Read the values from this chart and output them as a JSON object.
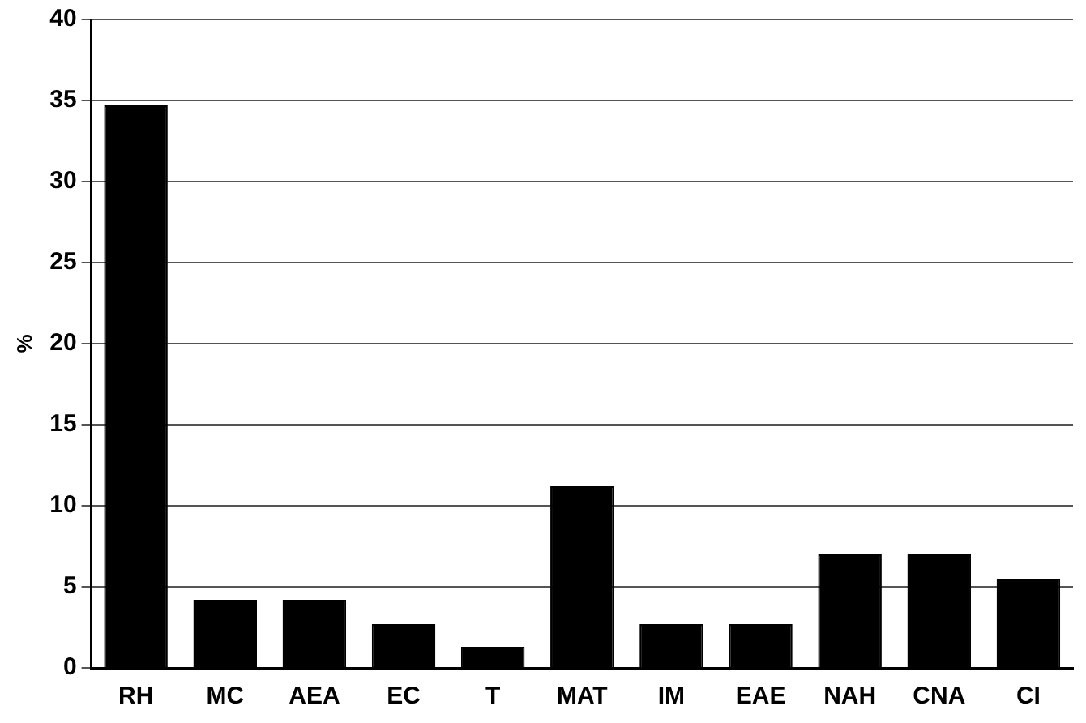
{
  "chart_data": {
    "type": "bar",
    "ylabel": "%",
    "categories": [
      "RH",
      "MC",
      "AEA",
      "EC",
      "T",
      "MAT",
      "IM",
      "EAE",
      "NAH",
      "CNA",
      "CI"
    ],
    "values": [
      34.7,
      4.2,
      4.2,
      2.7,
      1.3,
      11.2,
      2.7,
      2.7,
      7.0,
      7.0,
      5.5
    ],
    "color": "#000000",
    "ylim": [
      0,
      40
    ],
    "yticks": [
      0,
      5,
      10,
      15,
      20,
      25,
      30,
      35,
      40
    ],
    "grid": "y"
  }
}
